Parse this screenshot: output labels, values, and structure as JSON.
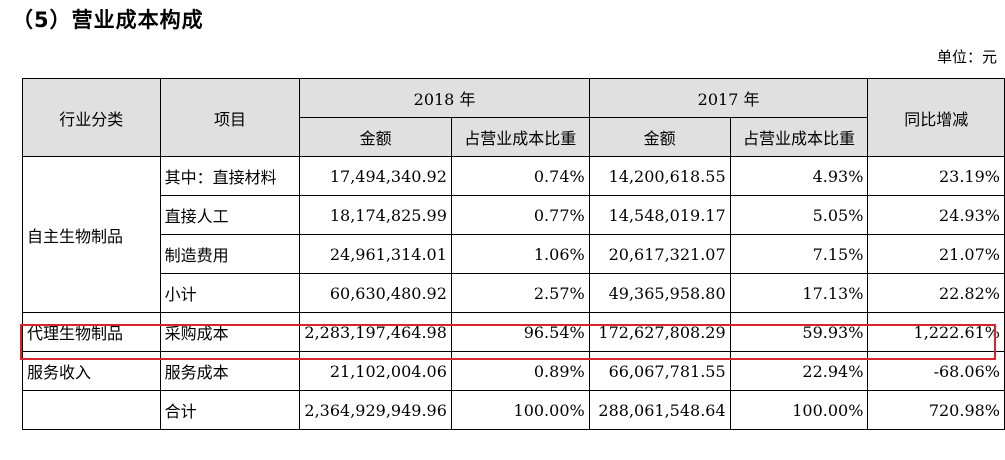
{
  "heading": "（5）营业成本构成",
  "unit": "单位：元",
  "header": {
    "industry": "行业分类",
    "item": "项目",
    "year2018": "2018 年",
    "year2017": "2017 年",
    "yoy": "同比增减",
    "amount": "金额",
    "ratio": "占营业成本比重"
  },
  "groups": {
    "self": "自主生物制品",
    "agency": "代理生物制品",
    "service": "服务收入"
  },
  "rows": [
    {
      "item": "其中：直接材料",
      "amt2018": "17,494,340.92",
      "pct2018": "0.74%",
      "amt2017": "14,200,618.55",
      "pct2017": "4.93%",
      "yoy": "23.19%"
    },
    {
      "item": "直接人工",
      "amt2018": "18,174,825.99",
      "pct2018": "0.77%",
      "amt2017": "14,548,019.17",
      "pct2017": "5.05%",
      "yoy": "24.93%"
    },
    {
      "item": "制造费用",
      "amt2018": "24,961,314.01",
      "pct2018": "1.06%",
      "amt2017": "20,617,321.07",
      "pct2017": "7.15%",
      "yoy": "21.07%"
    },
    {
      "item": "小计",
      "amt2018": "60,630,480.92",
      "pct2018": "2.57%",
      "amt2017": "49,365,958.80",
      "pct2017": "17.13%",
      "yoy": "22.82%"
    },
    {
      "item": "采购成本",
      "amt2018": "2,283,197,464.98",
      "pct2018": "96.54%",
      "amt2017": "172,627,808.29",
      "pct2017": "59.93%",
      "yoy": "1,222.61%"
    },
    {
      "item": "服务成本",
      "amt2018": "21,102,004.06",
      "pct2018": "0.89%",
      "amt2017": "66,067,781.55",
      "pct2017": "22.94%",
      "yoy": "-68.06%"
    },
    {
      "item": "合计",
      "amt2018": "2,364,929,949.96",
      "pct2018": "100.00%",
      "amt2017": "288,061,548.64",
      "pct2017": "100.00%",
      "yoy": "720.98%"
    }
  ],
  "highlight_color": "#d6262b"
}
